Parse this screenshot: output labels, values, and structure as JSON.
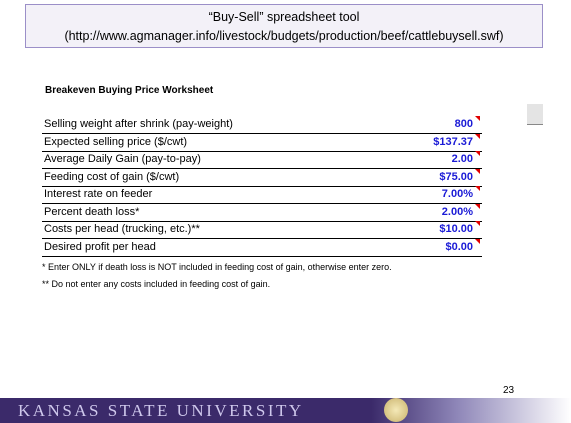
{
  "header": {
    "line1": "“Buy-Sell” spreadsheet tool",
    "line2": "(http://www.agmanager.info/livestock/budgets/production/beef/cattlebuysell.swf)"
  },
  "worksheet": {
    "title": "Breakeven Buying Price Worksheet",
    "rows": [
      {
        "label": "Selling weight after shrink (pay-weight)",
        "value": "800"
      },
      {
        "label": "Expected selling price ($/cwt)",
        "value": "$137.37"
      },
      {
        "label": "Average Daily Gain (pay-to-pay)",
        "value": "2.00"
      },
      {
        "label": "Feeding cost of gain ($/cwt)",
        "value": "$75.00"
      },
      {
        "label": "Interest rate on feeder",
        "value": "7.00%"
      },
      {
        "label": "Percent death loss*",
        "value": "2.00%"
      },
      {
        "label": "Costs per head (trucking, etc.)**",
        "value": "$10.00"
      },
      {
        "label": "Desired profit per head",
        "value": "$0.00"
      }
    ]
  },
  "notes": [
    "* Enter ONLY if death loss is NOT included in feeding cost of gain, otherwise enter zero.",
    "** Do not enter any costs included in feeding cost of gain."
  ],
  "footer": {
    "university": "KANSAS STATE UNIVERSITY"
  },
  "page_number": 23
}
